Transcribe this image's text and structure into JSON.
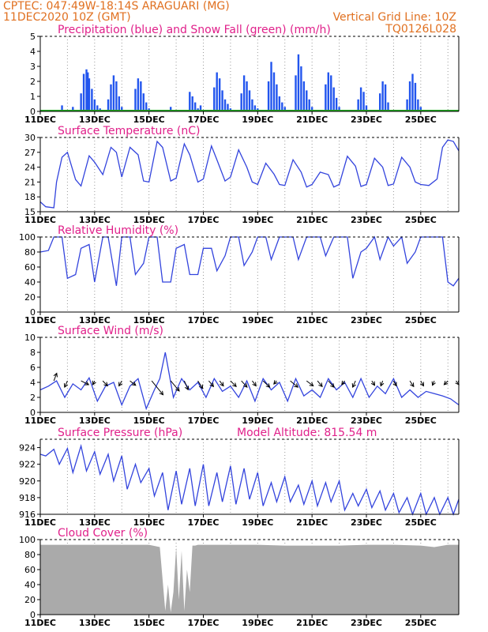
{
  "header": {
    "line1": "CPTEC:  047:49W-18:14S  ARAGUARI (MG)",
    "line2": "11DEC2020 10Z (GMT)",
    "grid_note": "Vertical Grid Line: 10Z",
    "code": "TQ0126L028"
  },
  "x_axis": {
    "ticks": [
      "11DEC",
      "13DEC",
      "15DEC",
      "17DEC",
      "19DEC",
      "21DEC",
      "23DEC",
      "25DEC"
    ],
    "start_day": 11,
    "end_day": 26.4
  },
  "colors": {
    "precip": "#2255ee",
    "snow": "#22aa22",
    "line": "#3344dd",
    "cloud": "#aaaaaa",
    "header": "#e07020",
    "title": "#e0208a"
  },
  "chart_data": [
    {
      "type": "bar",
      "title": "Precipitation (blue) and Snow Fall (green) (mm/h)",
      "ylim": [
        0,
        5
      ],
      "yticks": [
        0,
        1,
        2,
        3,
        4,
        5
      ],
      "series": [
        {
          "name": "Precipitation",
          "values_comment": "",
          "x": [
            11.3,
            11.8,
            12.2,
            12.5,
            12.6,
            12.7,
            12.75,
            12.8,
            12.9,
            13.0,
            13.1,
            13.2,
            13.5,
            13.6,
            13.7,
            13.8,
            13.9,
            14.0,
            14.5,
            14.6,
            14.7,
            14.8,
            14.9,
            15.0,
            15.8,
            16.5,
            16.6,
            16.7,
            16.8,
            16.9,
            17.0,
            17.4,
            17.5,
            17.6,
            17.7,
            17.8,
            17.9,
            18.0,
            18.4,
            18.5,
            18.6,
            18.7,
            18.8,
            18.9,
            19.0,
            19.4,
            19.5,
            19.6,
            19.7,
            19.8,
            19.9,
            20.0,
            20.4,
            20.5,
            20.6,
            20.7,
            20.8,
            20.9,
            21.0,
            21.5,
            21.6,
            21.7,
            21.8,
            21.9,
            22.0,
            22.7,
            22.8,
            22.9,
            23.0,
            23.5,
            23.6,
            23.7,
            23.8,
            24.5,
            24.6,
            24.7,
            24.8,
            24.9,
            25.0
          ],
          "values": [
            0.1,
            0.4,
            0.3,
            1.2,
            2.5,
            2.8,
            2.6,
            2.2,
            1.5,
            0.8,
            0.4,
            0.2,
            0.8,
            1.8,
            2.4,
            2.0,
            1.0,
            0.3,
            1.5,
            2.2,
            2.0,
            1.2,
            0.6,
            0.2,
            0.3,
            1.3,
            1.0,
            0.6,
            0.2,
            0.4,
            0.1,
            1.6,
            2.6,
            2.2,
            1.4,
            0.8,
            0.5,
            0.2,
            1.2,
            2.4,
            2.0,
            1.4,
            0.8,
            0.4,
            0.2,
            2.0,
            3.3,
            2.6,
            1.8,
            1.0,
            0.6,
            0.3,
            2.4,
            3.8,
            3.0,
            2.0,
            1.4,
            0.8,
            0.3,
            1.8,
            2.6,
            2.4,
            1.6,
            0.9,
            0.3,
            0.8,
            1.6,
            1.3,
            0.4,
            1.2,
            2.0,
            1.8,
            0.6,
            0.8,
            2.0,
            2.5,
            1.9,
            0.8,
            0.3
          ]
        },
        {
          "name": "Snow Fall",
          "values": [
            0
          ]
        }
      ]
    },
    {
      "type": "line",
      "title": "Surface Temperature (nC)",
      "ylim": [
        15,
        30
      ],
      "yticks": [
        15,
        18,
        21,
        24,
        27,
        30
      ],
      "x": [
        11.0,
        11.2,
        11.5,
        11.6,
        11.8,
        12.0,
        12.3,
        12.5,
        12.8,
        13.0,
        13.3,
        13.6,
        13.8,
        14.0,
        14.3,
        14.6,
        14.8,
        15.0,
        15.3,
        15.5,
        15.8,
        16.0,
        16.3,
        16.5,
        16.8,
        17.0,
        17.3,
        17.5,
        17.8,
        18.0,
        18.3,
        18.6,
        18.8,
        19.0,
        19.3,
        19.6,
        19.8,
        20.0,
        20.3,
        20.6,
        20.8,
        21.0,
        21.3,
        21.6,
        21.8,
        22.0,
        22.3,
        22.6,
        22.8,
        23.0,
        23.3,
        23.6,
        23.8,
        24.0,
        24.3,
        24.6,
        24.8,
        25.0,
        25.3,
        25.6,
        25.8,
        26.0,
        26.2,
        26.4
      ],
      "values": [
        17.0,
        16.0,
        15.8,
        21.0,
        26.0,
        27.0,
        21.5,
        20.2,
        26.3,
        25.0,
        22.5,
        28.0,
        27.0,
        22.0,
        28.0,
        26.5,
        21.2,
        21.0,
        29.2,
        28.0,
        21.2,
        21.8,
        28.7,
        26.5,
        21.0,
        21.6,
        28.3,
        25.5,
        21.2,
        22.0,
        27.5,
        24.0,
        21.0,
        20.5,
        24.8,
        22.6,
        20.5,
        20.3,
        25.5,
        23.0,
        20.0,
        20.5,
        23.0,
        22.5,
        20.0,
        20.5,
        26.2,
        24.2,
        20.1,
        20.5,
        25.8,
        24.0,
        20.3,
        20.6,
        26.0,
        24.0,
        21.0,
        20.5,
        20.3,
        21.6,
        28.0,
        29.5,
        29.2,
        27.3
      ]
    },
    {
      "type": "line",
      "title": "Relative Humidity (%)",
      "ylim": [
        0,
        100
      ],
      "yticks": [
        0,
        20,
        40,
        60,
        80,
        100
      ],
      "x": [
        11.0,
        11.3,
        11.5,
        11.8,
        12.0,
        12.3,
        12.5,
        12.8,
        13.0,
        13.3,
        13.5,
        13.8,
        14.0,
        14.3,
        14.5,
        14.8,
        15.0,
        15.3,
        15.5,
        15.8,
        16.0,
        16.3,
        16.5,
        16.8,
        17.0,
        17.3,
        17.5,
        17.8,
        18.0,
        18.3,
        18.5,
        18.8,
        19.0,
        19.3,
        19.5,
        19.8,
        20.0,
        20.3,
        20.5,
        20.8,
        21.0,
        21.3,
        21.5,
        21.8,
        22.0,
        22.3,
        22.5,
        22.8,
        23.0,
        23.3,
        23.5,
        23.8,
        24.0,
        24.3,
        24.5,
        24.8,
        25.0,
        25.3,
        25.5,
        25.8,
        26.0,
        26.2,
        26.4
      ],
      "values": [
        80,
        82,
        100,
        100,
        45,
        50,
        85,
        90,
        40,
        100,
        100,
        35,
        100,
        100,
        50,
        65,
        100,
        100,
        40,
        40,
        85,
        90,
        50,
        50,
        85,
        85,
        55,
        75,
        100,
        100,
        62,
        80,
        100,
        100,
        70,
        100,
        100,
        100,
        70,
        100,
        100,
        100,
        75,
        100,
        100,
        100,
        45,
        80,
        85,
        100,
        70,
        100,
        88,
        100,
        65,
        80,
        100,
        100,
        100,
        100,
        40,
        35,
        45
      ]
    },
    {
      "type": "line",
      "title": "Surface Wind (m/s)",
      "ylim": [
        0,
        10
      ],
      "yticks": [
        0,
        2,
        4,
        6,
        8,
        10
      ],
      "x": [
        11.0,
        11.3,
        11.6,
        11.9,
        12.2,
        12.5,
        12.8,
        13.1,
        13.4,
        13.7,
        14.0,
        14.3,
        14.6,
        14.9,
        15.2,
        15.4,
        15.6,
        15.9,
        16.2,
        16.5,
        16.8,
        17.1,
        17.4,
        17.7,
        18.0,
        18.3,
        18.6,
        18.9,
        19.2,
        19.5,
        19.8,
        20.1,
        20.4,
        20.7,
        21.0,
        21.3,
        21.6,
        21.9,
        22.2,
        22.5,
        22.8,
        23.1,
        23.4,
        23.7,
        24.0,
        24.3,
        24.6,
        24.9,
        25.2,
        25.5,
        25.8,
        26.1,
        26.4
      ],
      "values": [
        3.0,
        3.5,
        4.2,
        2.0,
        3.8,
        3.0,
        4.6,
        1.5,
        3.5,
        4.0,
        1.0,
        3.5,
        4.5,
        0.5,
        3.0,
        4.5,
        8.0,
        2.0,
        4.5,
        3.0,
        4.0,
        2.0,
        4.5,
        2.8,
        3.5,
        2.0,
        4.2,
        1.5,
        4.5,
        3.0,
        4.0,
        1.5,
        4.5,
        2.2,
        3.0,
        2.0,
        4.5,
        3.0,
        4.0,
        2.0,
        4.5,
        2.0,
        3.5,
        2.5,
        4.5,
        2.0,
        3.0,
        2.0,
        2.8,
        2.5,
        2.2,
        1.8,
        1.0
      ],
      "arrows": [
        {
          "x": 11.5,
          "dx": 0.3,
          "dy": -1.2
        },
        {
          "x": 12.0,
          "dx": -0.3,
          "dy": 1.0
        },
        {
          "x": 12.5,
          "dx": 0.8,
          "dy": 0.6
        },
        {
          "x": 13.0,
          "dx": -0.2,
          "dy": 0.6
        },
        {
          "x": 13.3,
          "dx": 0.5,
          "dy": 0.8
        },
        {
          "x": 14.0,
          "dx": -0.3,
          "dy": 0.8
        },
        {
          "x": 14.3,
          "dx": 0.6,
          "dy": 0.7
        },
        {
          "x": 15.1,
          "dx": 1.2,
          "dy": 2.2
        },
        {
          "x": 15.8,
          "dx": 0.9,
          "dy": 1.6
        },
        {
          "x": 16.3,
          "dx": 0.4,
          "dy": 1.4
        },
        {
          "x": 16.8,
          "dx": 0.5,
          "dy": 1.2
        },
        {
          "x": 17.2,
          "dx": 0.5,
          "dy": 0.9
        },
        {
          "x": 17.6,
          "dx": 0.4,
          "dy": 0.8
        },
        {
          "x": 18.0,
          "dx": 0.6,
          "dy": 0.9
        },
        {
          "x": 18.4,
          "dx": 0.6,
          "dy": 1.0
        },
        {
          "x": 18.8,
          "dx": 0.4,
          "dy": 0.8
        },
        {
          "x": 19.2,
          "dx": 0.7,
          "dy": 1.0
        },
        {
          "x": 19.7,
          "dx": -0.3,
          "dy": 0.5
        },
        {
          "x": 20.2,
          "dx": 0.8,
          "dy": 1.0
        },
        {
          "x": 20.8,
          "dx": 0.7,
          "dy": 0.8
        },
        {
          "x": 21.2,
          "dx": 0.5,
          "dy": 0.9
        },
        {
          "x": 21.6,
          "dx": 0.6,
          "dy": 1.0
        },
        {
          "x": 22.2,
          "dx": -0.3,
          "dy": 0.6
        },
        {
          "x": 22.6,
          "dx": -0.3,
          "dy": 1.0
        },
        {
          "x": 23.2,
          "dx": 0.3,
          "dy": 0.7
        },
        {
          "x": 23.6,
          "dx": -0.2,
          "dy": 0.8
        },
        {
          "x": 24.0,
          "dx": 0.3,
          "dy": 0.8
        },
        {
          "x": 24.6,
          "dx": 0.4,
          "dy": 0.9
        },
        {
          "x": 25.0,
          "dx": 0.3,
          "dy": 0.8
        },
        {
          "x": 25.5,
          "dx": -0.2,
          "dy": 0.7
        },
        {
          "x": 26.0,
          "dx": -0.4,
          "dy": 0.6
        },
        {
          "x": 26.3,
          "dx": 0.3,
          "dy": 0.6
        }
      ]
    },
    {
      "type": "line",
      "title": "Surface Pressure (hPa)",
      "altitude_label": "Model Altitude: 815.54 m",
      "ylim": [
        916,
        925
      ],
      "yticks": [
        916,
        918,
        920,
        922,
        924
      ],
      "x": [
        11.0,
        11.2,
        11.5,
        11.7,
        12.0,
        12.2,
        12.5,
        12.7,
        13.0,
        13.2,
        13.5,
        13.7,
        14.0,
        14.2,
        14.5,
        14.7,
        15.0,
        15.2,
        15.5,
        15.7,
        16.0,
        16.2,
        16.5,
        16.7,
        17.0,
        17.2,
        17.5,
        17.7,
        18.0,
        18.2,
        18.5,
        18.7,
        19.0,
        19.2,
        19.5,
        19.7,
        20.0,
        20.2,
        20.5,
        20.7,
        21.0,
        21.2,
        21.5,
        21.7,
        22.0,
        22.2,
        22.5,
        22.7,
        23.0,
        23.2,
        23.5,
        23.7,
        24.0,
        24.2,
        24.5,
        24.7,
        25.0,
        25.2,
        25.5,
        25.7,
        26.0,
        26.2,
        26.4
      ],
      "values": [
        923.2,
        923.0,
        923.8,
        922.0,
        923.9,
        921.0,
        924.2,
        921.2,
        923.5,
        920.8,
        923.2,
        920.0,
        923.0,
        919.0,
        922.0,
        919.8,
        921.5,
        918.2,
        921.0,
        916.5,
        921.2,
        917.2,
        921.5,
        917.0,
        922.0,
        917.0,
        921.0,
        917.5,
        921.8,
        917.2,
        921.5,
        917.8,
        921.0,
        917.0,
        919.8,
        917.5,
        920.5,
        917.5,
        919.5,
        917.2,
        920.0,
        917.0,
        919.8,
        917.5,
        920.0,
        916.5,
        918.5,
        917.0,
        919.0,
        916.8,
        918.8,
        916.5,
        918.5,
        916.2,
        918.0,
        916.0,
        918.5,
        916.0,
        918.0,
        916.0,
        918.0,
        916.0,
        917.8
      ]
    },
    {
      "type": "area",
      "title": "Cloud Cover (%)",
      "ylim": [
        0,
        100
      ],
      "yticks": [
        0,
        20,
        40,
        60,
        80,
        100
      ],
      "x": [
        11.0,
        12.0,
        13.0,
        14.0,
        15.0,
        15.4,
        15.6,
        15.7,
        15.8,
        15.9,
        16.0,
        16.1,
        16.2,
        16.3,
        16.4,
        16.5,
        16.6,
        16.7,
        16.8,
        17.0,
        18.0,
        19.0,
        20.0,
        21.0,
        22.0,
        23.0,
        24.0,
        25.0,
        25.5,
        26.0,
        26.4
      ],
      "values": [
        93,
        93,
        93,
        93,
        93,
        90,
        5,
        40,
        3,
        30,
        90,
        20,
        85,
        5,
        60,
        30,
        92,
        92,
        93,
        93,
        93,
        93,
        92,
        92,
        92,
        93,
        93,
        92,
        90,
        93,
        93
      ]
    }
  ]
}
